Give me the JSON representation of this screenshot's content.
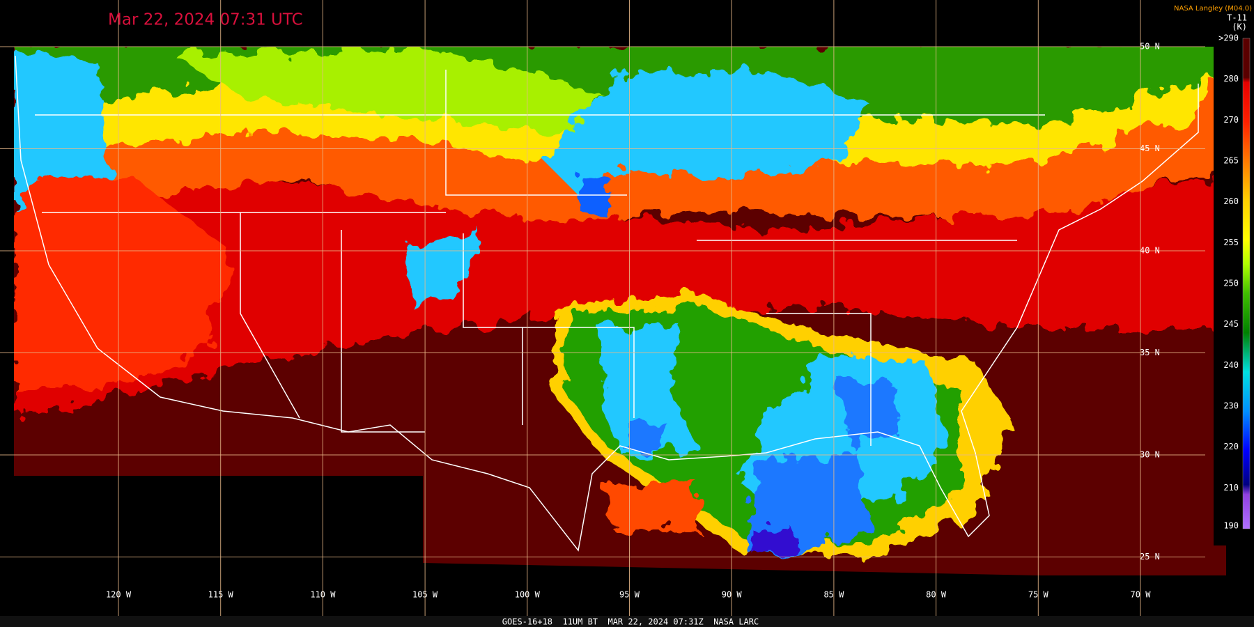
{
  "header": {
    "title": "Mar 22, 2024 07:31 UTC",
    "credit": "NASA Langley (M04.0)"
  },
  "colorbar": {
    "title": "T-11",
    "unit": "(K)",
    "labels": [
      ">290",
      "280",
      "270",
      "265",
      "260",
      "255",
      "250",
      "245",
      "240",
      "230",
      "220",
      "210",
      "190"
    ]
  },
  "map": {
    "latitudes": [
      "50 N",
      "45 N",
      "40 N",
      "35 N",
      "30 N",
      "25 N"
    ],
    "longitudes": [
      "120 W",
      "115 W",
      "110 W",
      "105 W",
      "100 W",
      "95 W",
      "90 W",
      "85 W",
      "80 W",
      "75 W",
      "70 W"
    ]
  },
  "footer": "GOES-16+18  11UM BT  MAR 22, 2024 07:31Z  NASA LARC"
}
